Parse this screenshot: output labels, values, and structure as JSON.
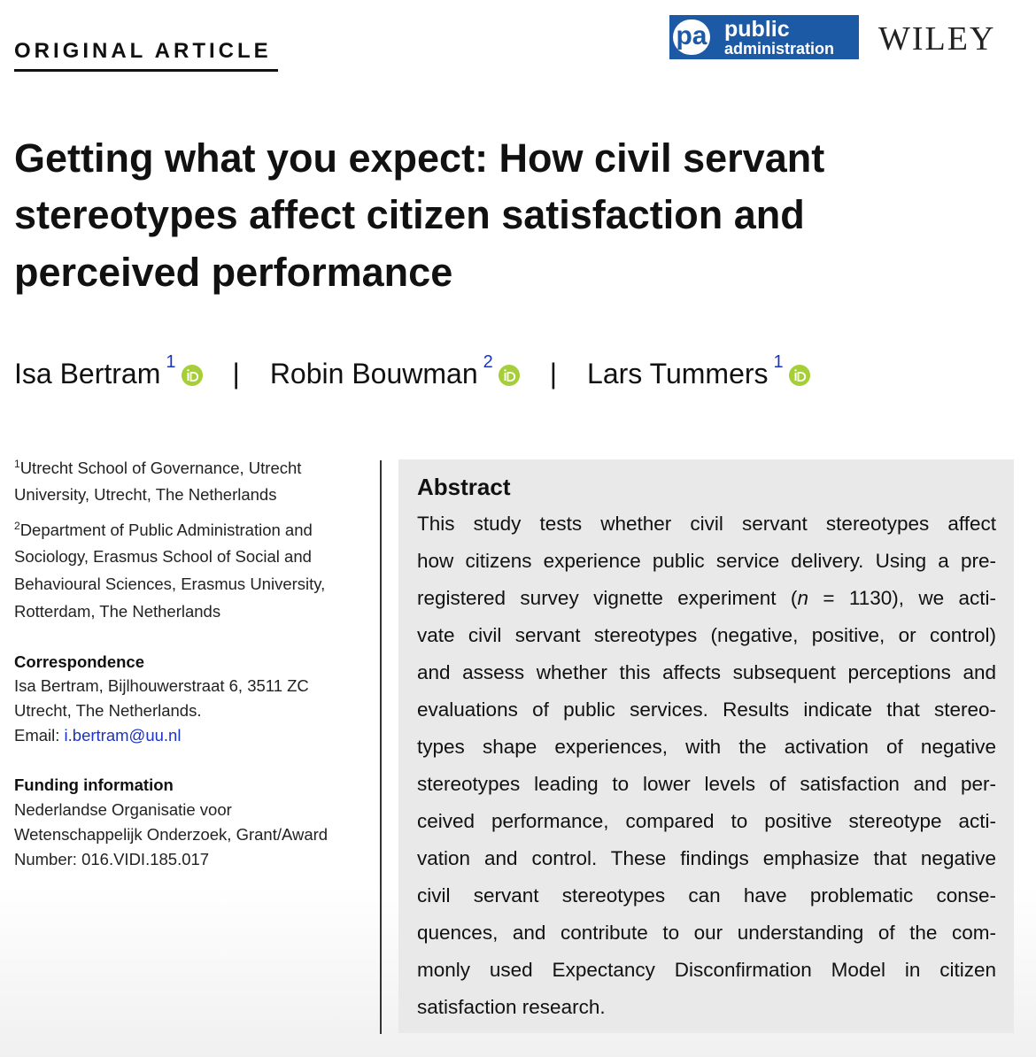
{
  "header": {
    "section_label": "ORIGINAL ARTICLE",
    "journal_logo": {
      "abbr": "pa",
      "line1": "public",
      "line2": "administration"
    },
    "publisher": "WILEY"
  },
  "title_lines": [
    "Getting what you expect: How civil servant",
    "stereotypes affect citizen satisfaction and",
    "perceived performance"
  ],
  "authors": [
    {
      "name": "Isa Bertram",
      "affiliation": "1"
    },
    {
      "name": "Robin Bouwman",
      "affiliation": "2"
    },
    {
      "name": "Lars Tummers",
      "affiliation": "1"
    }
  ],
  "author_separator": "|",
  "affiliations": [
    {
      "number": "1",
      "lines": [
        "Utrecht School of Governance, Utrecht",
        "University, Utrecht, The Netherlands"
      ]
    },
    {
      "number": "2",
      "lines": [
        "Department of Public Administration and",
        "Sociology, Erasmus School of Social and",
        "Behavioural Sciences, Erasmus University,",
        "Rotterdam, The Netherlands"
      ]
    }
  ],
  "correspondence": {
    "heading": "Correspondence",
    "lines": [
      "Isa Bertram, Bijlhouwerstraat 6, 3511 ZC",
      "Utrecht, The Netherlands."
    ],
    "email_label": "Email: ",
    "email": "i.bertram@uu.nl"
  },
  "funding": {
    "heading": "Funding information",
    "lines": [
      "Nederlandse Organisatie voor",
      "Wetenschappelijk Onderzoek, Grant/Award",
      "Number: 016.VIDI.185.017"
    ]
  },
  "abstract": {
    "heading": "Abstract",
    "lines": [
      "This study tests whether civil servant stereotypes affect",
      "how citizens experience public service delivery. Using a pre-",
      [
        "registered survey vignette experiment (",
        "n",
        " = 1130), we acti-"
      ],
      "vate civil servant stereotypes (negative, positive, or control)",
      "and assess whether this affects subsequent perceptions and",
      "evaluations of public services. Results indicate that stereo-",
      "types shape experiences, with the activation of negative",
      "stereotypes leading to lower levels of satisfaction and per-",
      "ceived performance, compared to positive stereotype acti-",
      "vation and control. These findings emphasize that negative",
      "civil servant stereotypes can have problematic conse-",
      "quences, and contribute to our understanding of the com-",
      "monly used Expectancy Disconfirmation Model in citizen",
      "satisfaction research."
    ]
  }
}
